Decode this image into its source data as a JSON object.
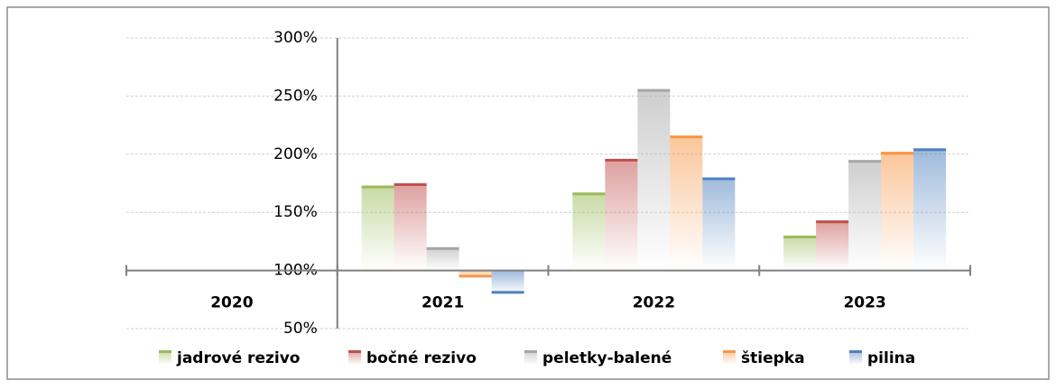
{
  "chart_data": {
    "type": "bar",
    "categories": [
      "2020",
      "2021",
      "2022",
      "2023"
    ],
    "series": [
      {
        "name": "jadrové rezivo",
        "color": "#9bbb59",
        "values": [
          null,
          173,
          167,
          130
        ]
      },
      {
        "name": "bočné rezivo",
        "color": "#c0504d",
        "values": [
          null,
          175,
          196,
          143
        ]
      },
      {
        "name": "peletky-balené",
        "color": "#a6a6a6",
        "values": [
          null,
          120,
          256,
          195
        ]
      },
      {
        "name": "štiepka",
        "color": "#f79646",
        "values": [
          null,
          94,
          216,
          202
        ]
      },
      {
        "name": "pilina",
        "color": "#4f81bd",
        "values": [
          null,
          80,
          180,
          205
        ]
      }
    ],
    "ylim": [
      50,
      300
    ],
    "yticks": [
      {
        "value": 50,
        "label": "50%"
      },
      {
        "value": 100,
        "label": "100%"
      },
      {
        "value": 150,
        "label": "150%"
      },
      {
        "value": 200,
        "label": "200%"
      },
      {
        "value": 250,
        "label": "250%"
      },
      {
        "value": 300,
        "label": "300%"
      }
    ],
    "baseline": 100,
    "grid": true,
    "legend": "bottom"
  }
}
